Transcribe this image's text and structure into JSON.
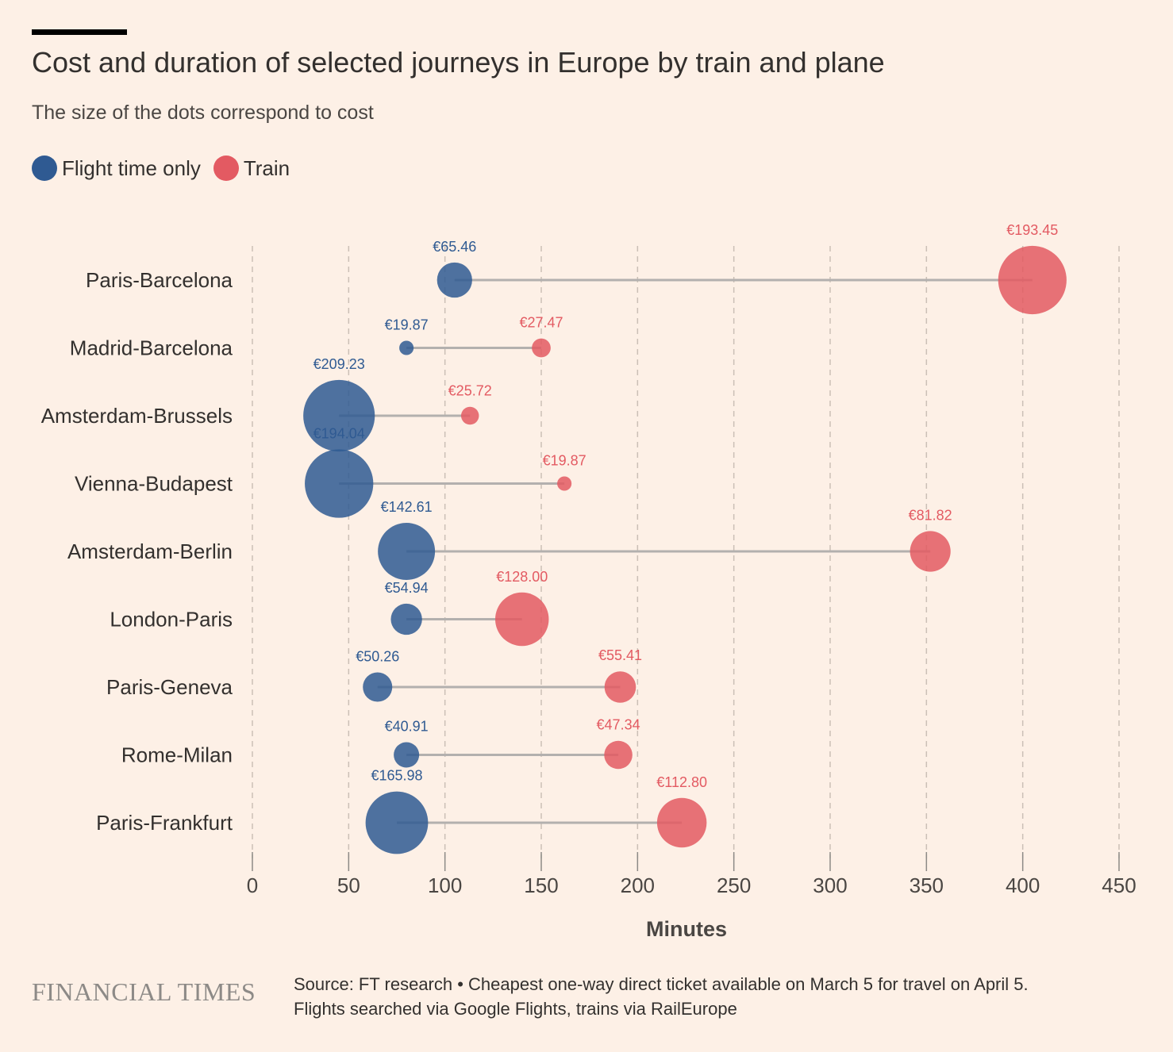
{
  "title": "Cost and duration of selected journeys in Europe by train and plane",
  "subtitle": "The size of the dots correspond to cost",
  "legend": [
    {
      "label": "Flight time only",
      "color": "#2f5a92"
    },
    {
      "label": "Train",
      "color": "#e35a62"
    }
  ],
  "footer": {
    "logo": "FINANCIAL TIMES",
    "source_line1": "Source: FT research • Cheapest one-way direct ticket available on March 5 for travel on April 5.",
    "source_line2": "Flights searched via Google Flights, trains via RailEurope"
  },
  "colors": {
    "flight": "#2f5a92",
    "train": "#e35a62",
    "connector": "#b3b0ae",
    "grid": "#cbbfb6",
    "background": "#fdf0e6"
  },
  "chart_data": {
    "type": "scatter",
    "subtype": "dumbbell",
    "xlabel": "Minutes",
    "xlim": [
      0,
      450
    ],
    "xticks": [
      0,
      50,
      100,
      150,
      200,
      250,
      300,
      350,
      400,
      450
    ],
    "grid": "vertical dashed",
    "size_encoding": "cost",
    "routes": [
      {
        "name": "Paris-Barcelona",
        "flight_minutes": 105,
        "flight_cost": "€65.46",
        "flight_cost_value": 65.46,
        "train_minutes": 405,
        "train_cost": "€193.45",
        "train_cost_value": 193.45
      },
      {
        "name": "Madrid-Barcelona",
        "flight_minutes": 80,
        "flight_cost": "€19.87",
        "flight_cost_value": 19.87,
        "train_minutes": 150,
        "train_cost": "€27.47",
        "train_cost_value": 27.47
      },
      {
        "name": "Amsterdam-Brussels",
        "flight_minutes": 45,
        "flight_cost": "€209.23",
        "flight_cost_value": 209.23,
        "train_minutes": 113,
        "train_cost": "€25.72",
        "train_cost_value": 25.72
      },
      {
        "name": "Vienna-Budapest",
        "flight_minutes": 45,
        "flight_cost": "€194.04",
        "flight_cost_value": 194.04,
        "train_minutes": 162,
        "train_cost": "€19.87",
        "train_cost_value": 19.87
      },
      {
        "name": "Amsterdam-Berlin",
        "flight_minutes": 80,
        "flight_cost": "€142.61",
        "flight_cost_value": 142.61,
        "train_minutes": 352,
        "train_cost": "€81.82",
        "train_cost_value": 81.82
      },
      {
        "name": "London-Paris",
        "flight_minutes": 80,
        "flight_cost": "€54.94",
        "flight_cost_value": 54.94,
        "train_minutes": 140,
        "train_cost": "€128.00",
        "train_cost_value": 128.0
      },
      {
        "name": "Paris-Geneva",
        "flight_minutes": 65,
        "flight_cost": "€50.26",
        "flight_cost_value": 50.26,
        "train_minutes": 191,
        "train_cost": "€55.41",
        "train_cost_value": 55.41
      },
      {
        "name": "Rome-Milan",
        "flight_minutes": 80,
        "flight_cost": "€40.91",
        "flight_cost_value": 40.91,
        "train_minutes": 190,
        "train_cost": "€47.34",
        "train_cost_value": 47.34
      },
      {
        "name": "Paris-Frankfurt",
        "flight_minutes": 75,
        "flight_cost": "€165.98",
        "flight_cost_value": 165.98,
        "train_minutes": 223,
        "train_cost": "€112.80",
        "train_cost_value": 112.8
      }
    ]
  }
}
